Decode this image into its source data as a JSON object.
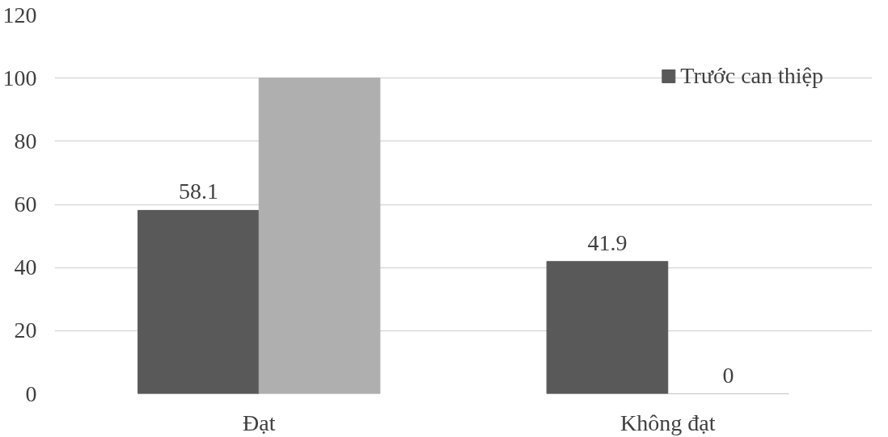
{
  "chart_data": {
    "type": "bar",
    "categories": [
      "Đạt",
      "Không đạt"
    ],
    "series": [
      {
        "name": "Trước can thiệp",
        "color": "#595959",
        "values": [
          58.1,
          41.9
        ],
        "value_labels": [
          "58.1",
          "41.9"
        ]
      },
      {
        "color": "#afafaf",
        "values": [
          100,
          0
        ],
        "value_labels": [
          null,
          "0"
        ]
      }
    ],
    "ylim": [
      0,
      120
    ],
    "yticks": [
      0,
      20,
      40,
      60,
      80,
      100,
      120
    ],
    "grid": "y",
    "legend": "top right"
  }
}
